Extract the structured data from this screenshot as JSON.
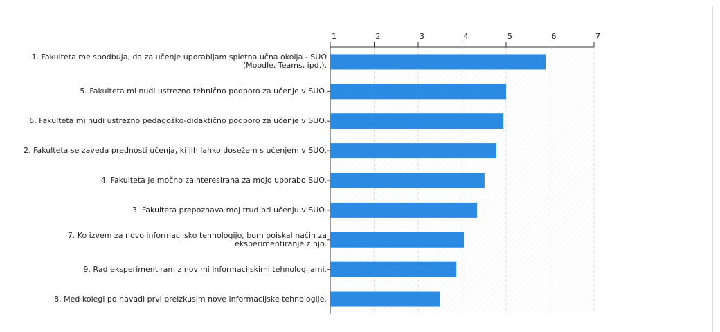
{
  "chart_data": {
    "type": "bar",
    "orientation": "horizontal",
    "categories": [
      "1. Fakulteta me spodbuja, da za učenje uporabljam spletna učna okolja - SUO (Moodle, Teams, ipd.).",
      "5. Fakulteta mi nudi ustrezno tehnično podporo za učenje v SUO.",
      "6. Fakulteta mi nudi ustrezno pedagoško-didaktično podporo za učenje v SUO.",
      "2. Fakulteta se zaveda prednosti učenja, ki jih lahko dosežem s učenjem v SUO.",
      "4. Fakulteta je močno zainteresirana za mojo uporabo SUO.",
      "3. Fakulteta prepoznava moj trud pri učenju v SUO.",
      "7. Ko izvem za novo informacijsko tehnologijo, bom poiskal način za eksperimentiranje z njo.",
      "9. Rad eksperimentiram z novimi informacijskimi tehnologijami.",
      "8. Med kolegi po navadi prvi preizkusim nove informacijske tehnologije."
    ],
    "values": [
      5.9,
      5.0,
      4.94,
      4.78,
      4.51,
      4.34,
      4.04,
      3.87,
      3.49
    ],
    "color": "#2b8ae2",
    "xlim": [
      1,
      7
    ],
    "xticks": [
      1,
      2,
      3,
      4,
      5,
      6,
      7
    ],
    "grid": true
  }
}
